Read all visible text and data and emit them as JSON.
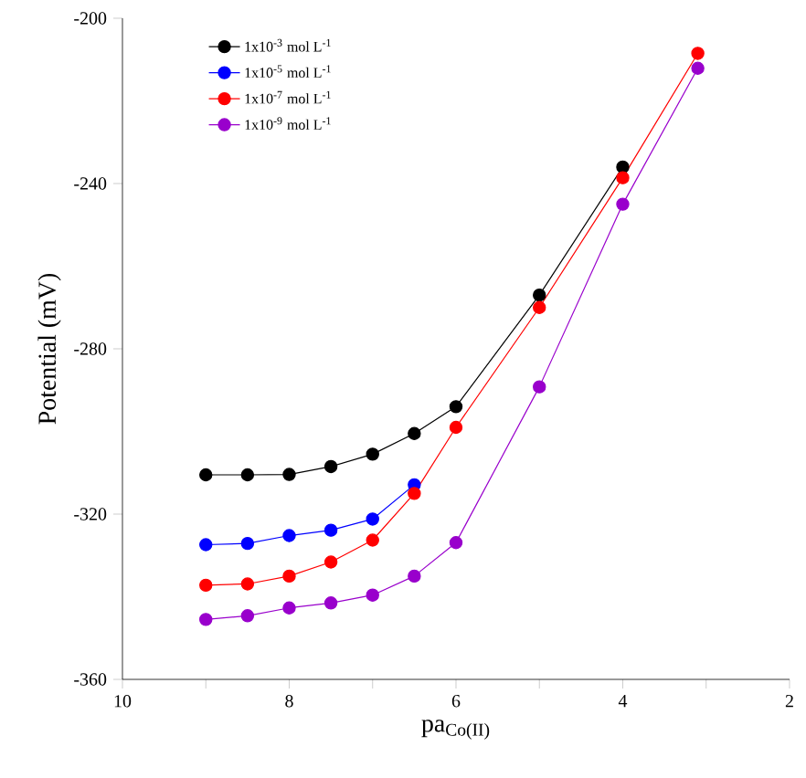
{
  "chart_data": {
    "type": "line",
    "xlabel": "pa$_{Co(II)}$",
    "ylabel": "Potential (mV)",
    "x": [
      9,
      8.5,
      8,
      7.5,
      7,
      6.5,
      6,
      5,
      4,
      3.1
    ],
    "series": [
      {
        "name": "1x10$^{-3}$ mol L$^{-1}$",
        "color": "#000000",
        "values": [
          -310.5,
          -310.5,
          -310.4,
          -308.5,
          -305.5,
          -300.5,
          -294,
          -267,
          -236,
          null
        ]
      },
      {
        "name": "1x10$^{-5}$ mol L$^{-1}$",
        "color": "#0000ff",
        "values": [
          -327.4,
          -327.1,
          -325.2,
          -323.9,
          -321.2,
          -312.9,
          null,
          null,
          null,
          null
        ]
      },
      {
        "name": "1x10$^{-7}$ mol L$^{-1}$",
        "color": "#ff0000",
        "values": [
          -337.2,
          -336.9,
          -335,
          -331.6,
          -326.3,
          -315,
          -299,
          -270,
          -238.6,
          -208.5
        ]
      },
      {
        "name": "1x10$^{-9}$ mol L$^{-1}$",
        "color": "#9900cc",
        "values": [
          -345.5,
          -344.6,
          -342.7,
          -341.5,
          -339.6,
          -335,
          -326.9,
          -289.2,
          -245,
          -212.1
        ]
      }
    ],
    "xlim": [
      10,
      2
    ],
    "xticks": [
      10,
      {
        "value": 9,
        "label": null
      },
      8,
      {
        "value": 7,
        "label": null
      },
      6,
      {
        "value": 5,
        "label": null
      },
      4,
      {
        "value": 3,
        "label": null
      },
      2
    ],
    "ylim": [
      -360,
      -200
    ],
    "yticks": [
      -360,
      -320,
      -280,
      -240,
      -200
    ],
    "legend": "top left",
    "marker": "circle",
    "line_style": "solid",
    "grid": false
  }
}
